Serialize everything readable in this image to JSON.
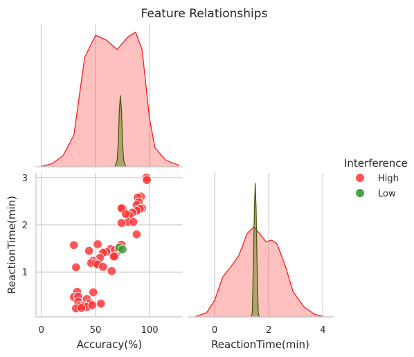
{
  "chart_data": {
    "type": "scatter",
    "title": "Feature Relationships",
    "grid": true,
    "legend": {
      "title": "Interference",
      "placement": "center-right",
      "entries": [
        {
          "label": "High",
          "color": "#ff3333"
        },
        {
          "label": "Low",
          "color": "#339933"
        }
      ]
    },
    "variables": [
      "Accuracy(%)",
      "ReactionTime(min)"
    ],
    "panels": {
      "accuracy_kde": {
        "type": "area",
        "xlabel": "",
        "xlim": [
          -5,
          130
        ],
        "series": [
          {
            "name": "High",
            "color": "#ff3333",
            "curve": [
              [
                0,
                0.002
              ],
              [
                10,
                0.02
              ],
              [
                20,
                0.07
              ],
              [
                30,
                0.2
              ],
              [
                40,
                0.69
              ],
              [
                50,
                0.83
              ],
              [
                60,
                0.8
              ],
              [
                70,
                0.74
              ],
              [
                80,
                0.82
              ],
              [
                87,
                0.85
              ],
              [
                93,
                0.74
              ],
              [
                100,
                0.3
              ],
              [
                105,
                0.12
              ],
              [
                115,
                0.04
              ],
              [
                127,
                0.01
              ]
            ]
          },
          {
            "name": "Low",
            "color": "#6b5a1e",
            "curve": [
              [
                68,
                0
              ],
              [
                70,
                0.04
              ],
              [
                71,
                0.15
              ],
              [
                72,
                0.35
              ],
              [
                73,
                0.45
              ],
              [
                74,
                0.36
              ],
              [
                75,
                0.15
              ],
              [
                76,
                0.04
              ],
              [
                78,
                0
              ]
            ]
          }
        ]
      },
      "scatter": {
        "type": "scatter",
        "xlabel": "Accuracy(%)",
        "ylabel": "ReactionTime(min)",
        "xlim": [
          -5,
          130
        ],
        "ylim": [
          0.05,
          3.1
        ],
        "xticks": [
          "0",
          "50",
          "100"
        ],
        "yticks": [
          "1",
          "2",
          "3"
        ],
        "series": [
          {
            "name": "High",
            "color": "#ff3333",
            "points": [
              [
                97,
                3.0
              ],
              [
                97.5,
                2.95
              ],
              [
                92,
                2.6
              ],
              [
                89,
                2.58
              ],
              [
                90,
                2.48
              ],
              [
                88,
                2.42
              ],
              [
                93,
                2.35
              ],
              [
                91,
                2.34
              ],
              [
                88,
                2.3
              ],
              [
                84,
                2.26
              ],
              [
                81,
                2.2
              ],
              [
                80,
                2.06
              ],
              [
                75,
                2.35
              ],
              [
                74,
                2.35
              ],
              [
                78,
                2.23
              ],
              [
                85,
                2.06
              ],
              [
                74,
                2.04
              ],
              [
                88,
                1.8
              ],
              [
                30,
                1.57
              ],
              [
                52,
                1.59
              ],
              [
                74,
                1.58
              ],
              [
                64,
                1.49
              ],
              [
                68,
                1.47
              ],
              [
                71,
                1.45
              ],
              [
                60,
                1.43
              ],
              [
                44,
                1.45
              ],
              [
                57,
                1.41
              ],
              [
                68,
                1.34
              ],
              [
                67,
                1.33
              ],
              [
                54,
                1.3
              ],
              [
                48,
                1.24
              ],
              [
                46,
                1.19
              ],
              [
                50,
                1.19
              ],
              [
                52,
                1.16
              ],
              [
                57,
                1.11
              ],
              [
                32,
                1.1
              ],
              [
                65,
                1.02
              ],
              [
                33,
                0.58
              ],
              [
                48,
                0.57
              ],
              [
                30,
                0.47
              ],
              [
                34,
                0.48
              ],
              [
                42,
                0.43
              ],
              [
                34,
                0.37
              ],
              [
                45,
                0.34
              ],
              [
                55,
                0.33
              ],
              [
                36,
                0.29
              ],
              [
                39,
                0.28
              ],
              [
                42,
                0.26
              ],
              [
                47,
                0.3
              ],
              [
                32,
                0.23
              ],
              [
                37,
                0.24
              ]
            ]
          },
          {
            "name": "Low",
            "color": "#339933",
            "points": [
              [
                72,
                1.52
              ],
              [
                75,
                1.48
              ]
            ]
          }
        ]
      },
      "reaction_kde": {
        "type": "area",
        "xlabel": "ReactionTime(min)",
        "xlim": [
          -1.0,
          4.4
        ],
        "xticks": [
          "0",
          "2",
          "4"
        ],
        "series": [
          {
            "name": "High",
            "color": "#ff3333",
            "curve": [
              [
                -0.7,
                0.005
              ],
              [
                -0.3,
                0.05
              ],
              [
                0,
                0.2
              ],
              [
                0.3,
                0.48
              ],
              [
                0.6,
                0.6
              ],
              [
                0.9,
                0.74
              ],
              [
                1.2,
                1.0
              ],
              [
                1.45,
                1.08
              ],
              [
                1.7,
                0.98
              ],
              [
                1.9,
                0.9
              ],
              [
                2.1,
                0.92
              ],
              [
                2.3,
                0.88
              ],
              [
                2.6,
                0.62
              ],
              [
                2.9,
                0.3
              ],
              [
                3.3,
                0.12
              ],
              [
                3.7,
                0.03
              ],
              [
                4.0,
                0.005
              ]
            ]
          },
          {
            "name": "Low",
            "color": "#6b5a1e",
            "curve": [
              [
                1.35,
                0
              ],
              [
                1.39,
                0.05
              ],
              [
                1.43,
                0.6
              ],
              [
                1.47,
                1.3
              ],
              [
                1.5,
                1.6
              ],
              [
                1.53,
                1.3
              ],
              [
                1.57,
                0.6
              ],
              [
                1.61,
                0.05
              ],
              [
                1.65,
                0
              ]
            ]
          }
        ]
      }
    }
  }
}
